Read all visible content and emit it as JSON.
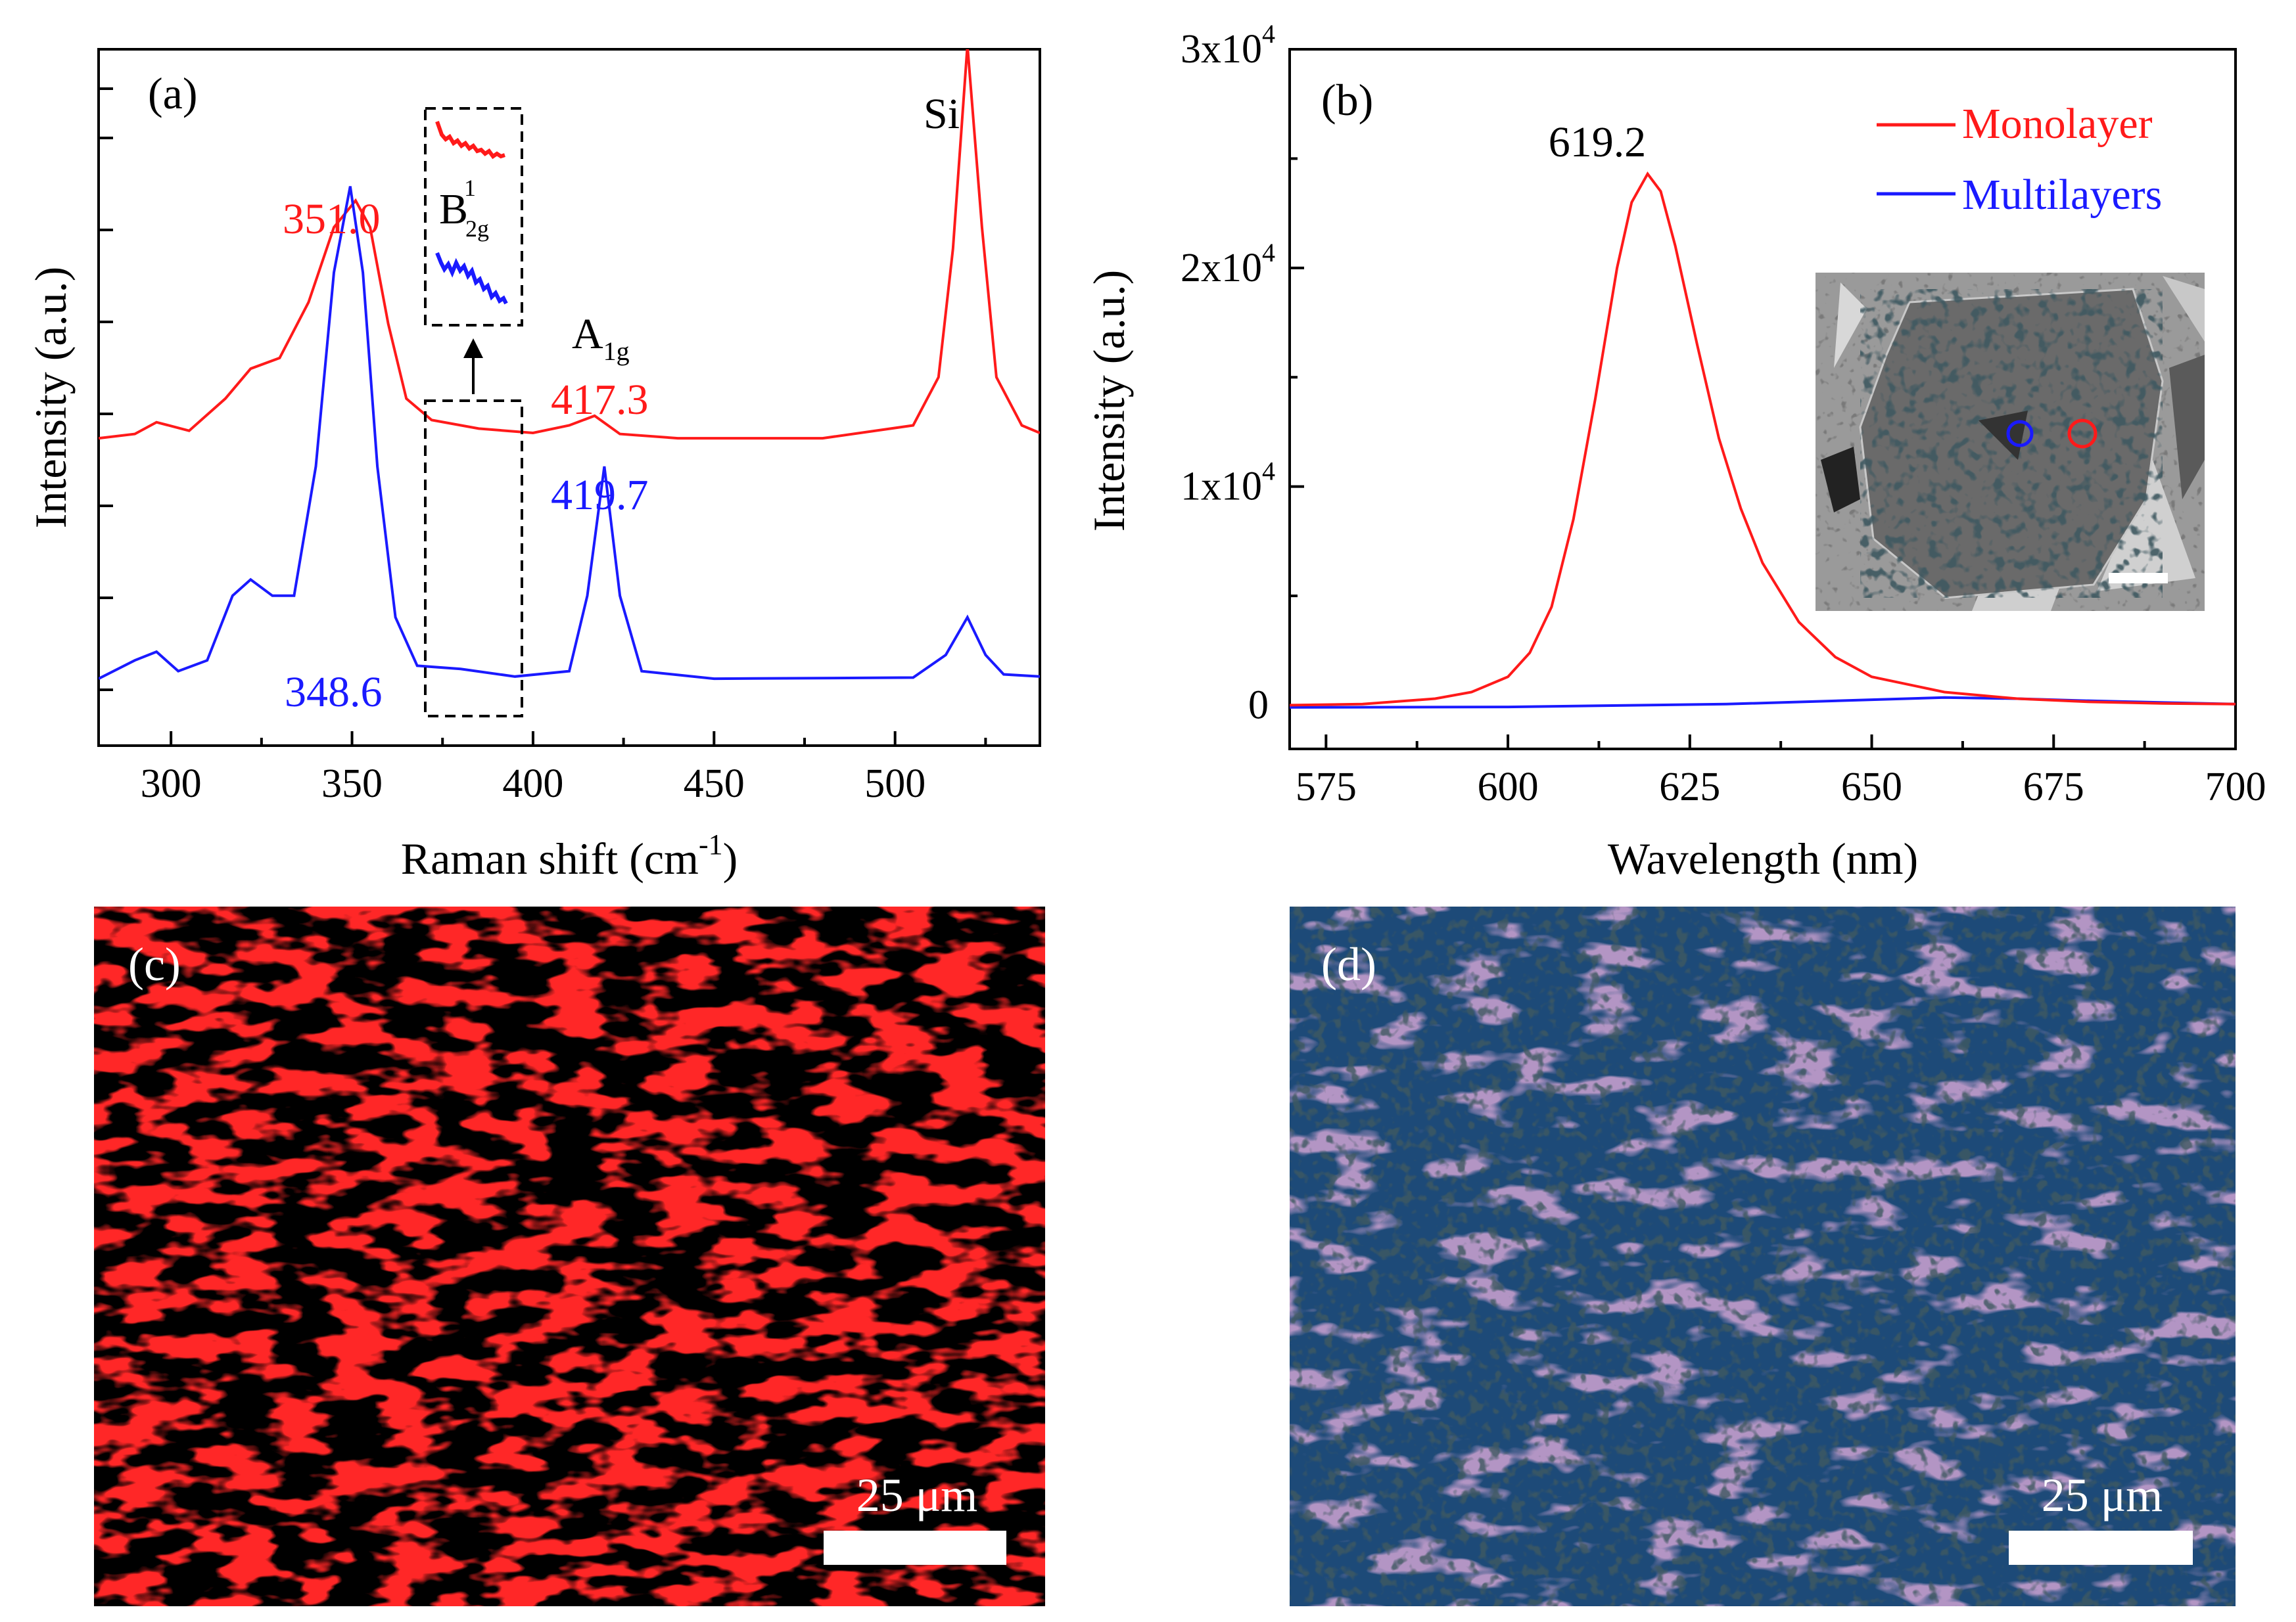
{
  "colors": {
    "red": "#ff1a1a",
    "blue": "#1a1aff",
    "black": "#000000",
    "white": "#ffffff"
  },
  "chart_data": [
    {
      "panel": "(a)",
      "type": "line",
      "xlabel": "Raman shift (cm",
      "xlabel_sup": "-1",
      "xlabel_end": ")",
      "ylabel": "Intensity (a.u.)",
      "xlim": [
        280,
        540
      ],
      "xticks": [
        300,
        350,
        400,
        450,
        500
      ],
      "series": [
        {
          "name": "Monolayer",
          "color": "#ff1a1a",
          "x": [
            280,
            290,
            296,
            305,
            315,
            322,
            330,
            338,
            345,
            351,
            355,
            360,
            365,
            372,
            385,
            400,
            410,
            417,
            424,
            440,
            480,
            505,
            512,
            516,
            520,
            524,
            528,
            535,
            540
          ],
          "y": [
            0.3,
            0.7,
            1.8,
            1.0,
            4.0,
            6.8,
            7.8,
            13.0,
            20.0,
            22.5,
            20.0,
            11.0,
            4.0,
            2.0,
            1.2,
            0.8,
            1.5,
            2.4,
            0.7,
            0.3,
            0.3,
            1.5,
            6.0,
            18.0,
            37.0,
            20.0,
            6.0,
            1.5,
            0.8
          ]
        },
        {
          "name": "Multilayers",
          "color": "#1a1aff",
          "x": [
            280,
            290,
            296,
            302,
            310,
            317,
            322,
            328,
            334,
            340,
            345,
            349.5,
            353,
            357,
            362,
            368,
            380,
            395,
            410,
            415,
            419.7,
            424,
            430,
            450,
            505,
            514,
            520,
            525,
            530,
            540
          ],
          "y": [
            0.3,
            2.0,
            2.8,
            1.0,
            2.0,
            8.0,
            9.5,
            8.0,
            8.0,
            20.0,
            38.0,
            46.0,
            38.0,
            20.0,
            6.0,
            1.5,
            1.2,
            0.5,
            1.0,
            8.0,
            20.0,
            8.0,
            1.0,
            0.3,
            0.4,
            2.5,
            6.0,
            2.5,
            0.7,
            0.5
          ]
        }
      ],
      "annotations": [
        {
          "text": "351.0",
          "color": "#ff1a1a"
        },
        {
          "text": "417.3",
          "color": "#ff1a1a"
        },
        {
          "text": "419.7",
          "color": "#1a1aff"
        },
        {
          "text": "348.6",
          "color": "#1a1aff"
        },
        {
          "text": "Si",
          "color": "#000000"
        },
        {
          "text": "A",
          "sub": "1g",
          "color": "#000000"
        },
        {
          "text": "B",
          "sup": "1",
          "sub": "2g",
          "color": "#000000"
        }
      ],
      "highlight_range": [
        372,
        393
      ]
    },
    {
      "panel": "(b)",
      "type": "line",
      "xlabel": "Wavelength (nm)",
      "ylabel": "Intensity (a.u.)",
      "xlim": [
        570,
        700
      ],
      "ylim": [
        -2000,
        30000
      ],
      "xticks": [
        575,
        600,
        625,
        650,
        675,
        700
      ],
      "yticks": [
        {
          "value": 0,
          "label": "0",
          "sup": ""
        },
        {
          "value": 10000,
          "label": "1x10",
          "sup": "4"
        },
        {
          "value": 20000,
          "label": "2x10",
          "sup": "4"
        },
        {
          "value": 30000,
          "label": "3x10",
          "sup": "4"
        }
      ],
      "series": [
        {
          "name": "Monolayer",
          "color": "#ff1a1a",
          "x": [
            570,
            580,
            590,
            595,
            600,
            603,
            606,
            609,
            612,
            615,
            617,
            619.2,
            621,
            623,
            626,
            629,
            632,
            635,
            640,
            645,
            650,
            660,
            670,
            680,
            690,
            700
          ],
          "y": [
            0,
            50,
            300,
            600,
            1300,
            2400,
            4500,
            8500,
            14000,
            20000,
            23000,
            24300,
            23500,
            21000,
            16500,
            12200,
            9000,
            6500,
            3800,
            2200,
            1300,
            600,
            300,
            150,
            80,
            50
          ]
        },
        {
          "name": "Multilayers",
          "color": "#1a1aff",
          "x": [
            570,
            600,
            630,
            650,
            660,
            670,
            680,
            700
          ],
          "y": [
            -100,
            -80,
            50,
            250,
            350,
            300,
            200,
            50
          ]
        }
      ],
      "peak_label": "619.2",
      "legend": [
        {
          "label": "Monolayer",
          "color": "#ff1a1a"
        },
        {
          "label": "Multilayers",
          "color": "#1a1aff"
        }
      ],
      "legend_position": "top-right"
    }
  ],
  "images": {
    "c": {
      "panel_label": "(c)",
      "scale_bar": "25 μm"
    },
    "d": {
      "panel_label": "(d)",
      "scale_bar": "25 μm"
    }
  }
}
